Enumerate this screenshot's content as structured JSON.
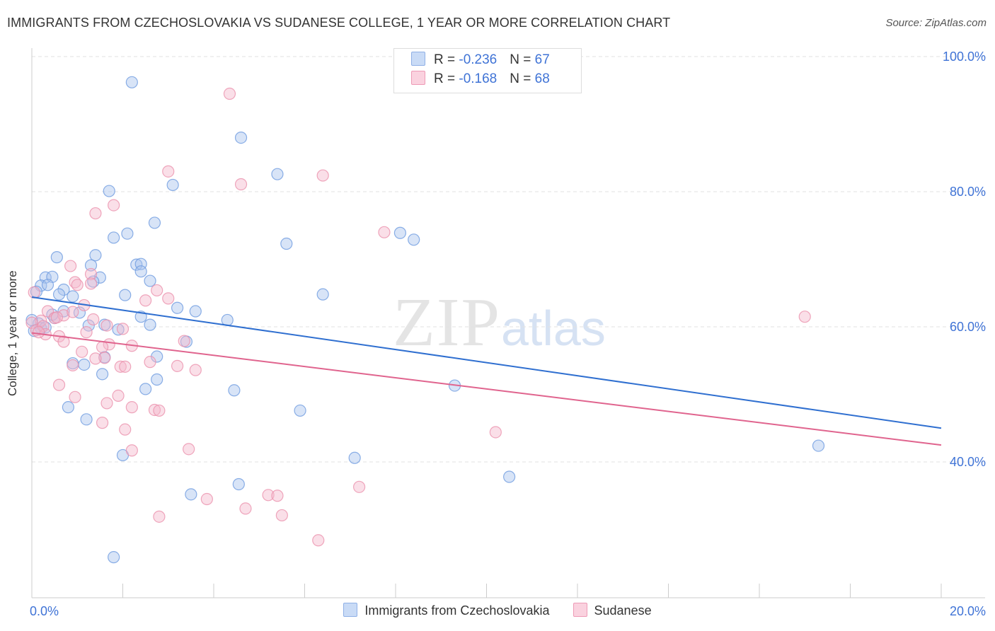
{
  "header": {
    "title": "IMMIGRANTS FROM CZECHOSLOVAKIA VS SUDANESE COLLEGE, 1 YEAR OR MORE CORRELATION CHART",
    "source": "Source: ZipAtlas.com"
  },
  "watermark": {
    "zip": "ZIP",
    "atlas": "atlas"
  },
  "legend": {
    "rows": [
      {
        "r_label": "R = ",
        "r_value": "-0.236",
        "n_label": "N = ",
        "n_value": "67",
        "color": "#a9c4ee"
      },
      {
        "r_label": "R = ",
        "r_value": "-0.168",
        "n_label": "N = ",
        "n_value": "68",
        "color": "#f5b8cc"
      }
    ]
  },
  "chart_data": {
    "type": "scatter",
    "title": "IMMIGRANTS FROM CZECHOSLOVAKIA VS SUDANESE COLLEGE, 1 YEAR OR MORE CORRELATION CHART",
    "xlabel": "",
    "ylabel": "College, 1 year or more",
    "xlim": [
      0,
      20
    ],
    "ylim": [
      22,
      102
    ],
    "x_tick_labels": [
      "0.0%",
      "20.0%"
    ],
    "y_ticks": [
      40,
      60,
      80,
      100
    ],
    "y_tick_labels": [
      "40.0%",
      "60.0%",
      "80.0%",
      "100.0%"
    ],
    "grid": true,
    "legend_position": "top-center",
    "series": [
      {
        "name": "Immigrants from Czechoslovakia",
        "color": "#6e9be0",
        "fill": "#a9c4ee",
        "trend": {
          "x": [
            0,
            20
          ],
          "y": [
            64.4,
            45.0
          ],
          "color": "#2f6fd0"
        },
        "points": [
          [
            2.2,
            96.2
          ],
          [
            4.6,
            88.0
          ],
          [
            5.4,
            82.6
          ],
          [
            3.1,
            81.0
          ],
          [
            1.7,
            80.1
          ],
          [
            2.7,
            75.4
          ],
          [
            2.1,
            73.8
          ],
          [
            1.8,
            73.2
          ],
          [
            8.1,
            73.9
          ],
          [
            8.4,
            72.9
          ],
          [
            5.6,
            72.3
          ],
          [
            1.4,
            70.6
          ],
          [
            0.55,
            70.3
          ],
          [
            2.3,
            69.2
          ],
          [
            2.4,
            69.3
          ],
          [
            1.3,
            69.1
          ],
          [
            2.4,
            68.2
          ],
          [
            0.3,
            67.3
          ],
          [
            0.45,
            67.4
          ],
          [
            1.5,
            67.3
          ],
          [
            1.35,
            66.7
          ],
          [
            2.6,
            66.8
          ],
          [
            0.2,
            66.1
          ],
          [
            0.7,
            65.5
          ],
          [
            0.35,
            66.2
          ],
          [
            0.1,
            65.2
          ],
          [
            2.05,
            64.7
          ],
          [
            0.6,
            64.8
          ],
          [
            0.9,
            64.5
          ],
          [
            6.4,
            64.8
          ],
          [
            0.7,
            62.3
          ],
          [
            3.2,
            62.8
          ],
          [
            3.6,
            62.3
          ],
          [
            1.05,
            62.1
          ],
          [
            0.5,
            61.3
          ],
          [
            2.4,
            61.5
          ],
          [
            4.3,
            61.0
          ],
          [
            2.6,
            60.3
          ],
          [
            1.25,
            60.2
          ],
          [
            1.9,
            59.6
          ],
          [
            0.15,
            60.5
          ],
          [
            0.2,
            59.8
          ],
          [
            3.4,
            57.8
          ],
          [
            1.6,
            55.5
          ],
          [
            2.75,
            55.6
          ],
          [
            1.15,
            54.4
          ],
          [
            0.9,
            54.6
          ],
          [
            1.55,
            53.0
          ],
          [
            2.75,
            52.2
          ],
          [
            9.3,
            51.3
          ],
          [
            2.5,
            50.8
          ],
          [
            4.45,
            50.6
          ],
          [
            0.8,
            48.1
          ],
          [
            5.9,
            47.6
          ],
          [
            1.2,
            46.3
          ],
          [
            2.0,
            41.0
          ],
          [
            7.1,
            40.6
          ],
          [
            17.3,
            42.4
          ],
          [
            10.5,
            37.8
          ],
          [
            4.55,
            36.7
          ],
          [
            3.5,
            35.2
          ],
          [
            1.8,
            25.9
          ],
          [
            0.0,
            61.0
          ],
          [
            0.05,
            59.4
          ],
          [
            0.3,
            59.9
          ],
          [
            0.45,
            61.8
          ],
          [
            1.6,
            60.3
          ]
        ]
      },
      {
        "name": "Sudanese",
        "color": "#eb91ad",
        "fill": "#f5b8cc",
        "trend": {
          "x": [
            0,
            20
          ],
          "y": [
            59.1,
            42.5
          ],
          "color": "#e0648e"
        },
        "points": [
          [
            4.35,
            94.5
          ],
          [
            3.0,
            83.0
          ],
          [
            6.4,
            82.4
          ],
          [
            4.6,
            81.1
          ],
          [
            1.8,
            78.0
          ],
          [
            1.4,
            76.8
          ],
          [
            7.75,
            74.0
          ],
          [
            0.85,
            69.0
          ],
          [
            1.3,
            67.8
          ],
          [
            1.3,
            66.4
          ],
          [
            0.95,
            66.6
          ],
          [
            1.0,
            66.2
          ],
          [
            2.75,
            65.4
          ],
          [
            0.05,
            65.1
          ],
          [
            3.0,
            64.2
          ],
          [
            2.5,
            63.9
          ],
          [
            1.15,
            63.2
          ],
          [
            0.35,
            62.3
          ],
          [
            0.5,
            61.3
          ],
          [
            0.7,
            61.7
          ],
          [
            0.9,
            62.2
          ],
          [
            0.2,
            60.9
          ],
          [
            1.65,
            60.2
          ],
          [
            2.0,
            59.7
          ],
          [
            1.2,
            59.2
          ],
          [
            0.6,
            58.6
          ],
          [
            3.35,
            57.9
          ],
          [
            0.7,
            57.8
          ],
          [
            1.7,
            57.4
          ],
          [
            2.2,
            57.2
          ],
          [
            1.55,
            57.0
          ],
          [
            1.1,
            56.3
          ],
          [
            1.6,
            55.4
          ],
          [
            1.4,
            55.3
          ],
          [
            2.6,
            54.8
          ],
          [
            3.2,
            54.2
          ],
          [
            1.95,
            54.1
          ],
          [
            2.05,
            54.1
          ],
          [
            0.9,
            54.3
          ],
          [
            3.6,
            53.6
          ],
          [
            0.6,
            51.4
          ],
          [
            1.9,
            49.8
          ],
          [
            0.95,
            49.6
          ],
          [
            1.65,
            48.7
          ],
          [
            2.2,
            48.1
          ],
          [
            2.7,
            47.7
          ],
          [
            2.8,
            47.6
          ],
          [
            1.55,
            45.8
          ],
          [
            2.05,
            44.8
          ],
          [
            10.2,
            44.4
          ],
          [
            3.45,
            41.9
          ],
          [
            2.2,
            41.7
          ],
          [
            7.2,
            36.3
          ],
          [
            5.2,
            35.1
          ],
          [
            5.4,
            35.0
          ],
          [
            3.85,
            34.5
          ],
          [
            4.7,
            33.1
          ],
          [
            5.5,
            32.1
          ],
          [
            2.8,
            31.9
          ],
          [
            6.3,
            28.4
          ],
          [
            17.0,
            61.5
          ],
          [
            0.0,
            60.6
          ],
          [
            0.1,
            59.5
          ],
          [
            0.25,
            60.1
          ],
          [
            0.55,
            61.4
          ],
          [
            0.3,
            58.9
          ],
          [
            1.35,
            61.1
          ],
          [
            0.15,
            59.2
          ]
        ]
      }
    ]
  },
  "bottom_legend": {
    "items": [
      {
        "label": "Immigrants from Czechoslovakia",
        "color": "#a9c4ee"
      },
      {
        "label": "Sudanese",
        "color": "#f5b8cc"
      }
    ]
  }
}
